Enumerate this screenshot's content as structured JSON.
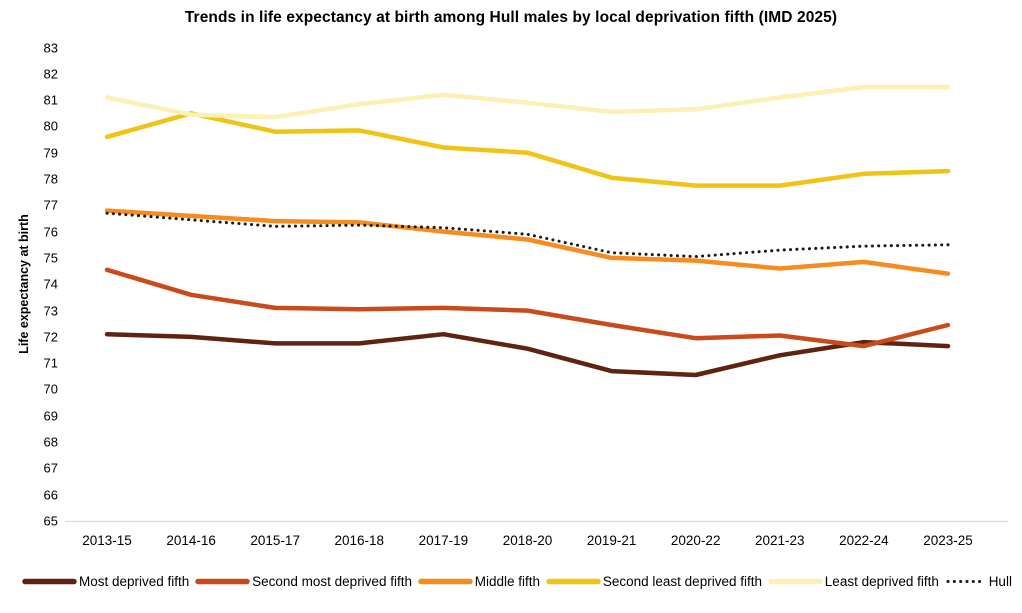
{
  "title": "Trends in life expectancy at birth among Hull males by local deprivation fifth (IMD 2025)",
  "y_axis": {
    "label": "Life expectancy at birth",
    "min": 65,
    "max": 83,
    "step": 1
  },
  "x_axis": {
    "labels": [
      "2013-15",
      "2014-16",
      "2015-17",
      "2016-18",
      "2017-19",
      "2018-20",
      "2019-21",
      "2020-22",
      "2021-23",
      "2022-24",
      "2023-25"
    ]
  },
  "colors": {
    "axis_line": "#D9D9D9",
    "text": "#000000",
    "background": "#FFFFFF"
  },
  "chart_data": {
    "type": "line",
    "title": "Trends in life expectancy at birth among Hull males by local deprivation fifth (IMD 2025)",
    "xlabel": "",
    "ylabel": "Life expectancy at birth",
    "ylim": [
      65,
      83
    ],
    "y_tick_step": 1,
    "grid": false,
    "legend_position": "bottom",
    "categories": [
      "2013-15",
      "2014-16",
      "2015-17",
      "2016-18",
      "2017-19",
      "2018-20",
      "2019-21",
      "2020-22",
      "2021-23",
      "2022-24",
      "2023-25"
    ],
    "series": [
      {
        "name": "Most deprived fifth",
        "color": "#5E2312",
        "style": "solid",
        "values": [
          72.1,
          72.0,
          71.75,
          71.75,
          72.1,
          71.55,
          70.7,
          70.55,
          71.3,
          71.8,
          71.65
        ]
      },
      {
        "name": "Second most deprived fifth",
        "color": "#C94A1B",
        "style": "solid",
        "values": [
          74.55,
          73.6,
          73.1,
          73.05,
          73.1,
          73.0,
          72.45,
          71.95,
          72.05,
          71.65,
          72.45
        ]
      },
      {
        "name": "Middle fifth",
        "color": "#F68B1F",
        "style": "solid",
        "values": [
          76.8,
          76.6,
          76.4,
          76.35,
          76.0,
          75.7,
          75.0,
          74.9,
          74.6,
          74.85,
          74.4
        ]
      },
      {
        "name": "Second least deprived fifth",
        "color": "#F0C317",
        "style": "solid",
        "values": [
          79.6,
          80.5,
          79.8,
          79.85,
          79.2,
          79.0,
          78.05,
          77.75,
          77.75,
          78.2,
          78.3
        ]
      },
      {
        "name": "Least deprived fifth",
        "color": "#FBF0B5",
        "style": "solid",
        "values": [
          81.1,
          80.45,
          80.35,
          80.85,
          81.2,
          80.9,
          80.55,
          80.65,
          81.1,
          81.5,
          81.5
        ]
      },
      {
        "name": "Hull",
        "color": "#1A1A1A",
        "style": "dotted",
        "values": [
          76.7,
          76.45,
          76.2,
          76.25,
          76.15,
          75.9,
          75.2,
          75.05,
          75.3,
          75.45,
          75.5
        ]
      }
    ]
  }
}
